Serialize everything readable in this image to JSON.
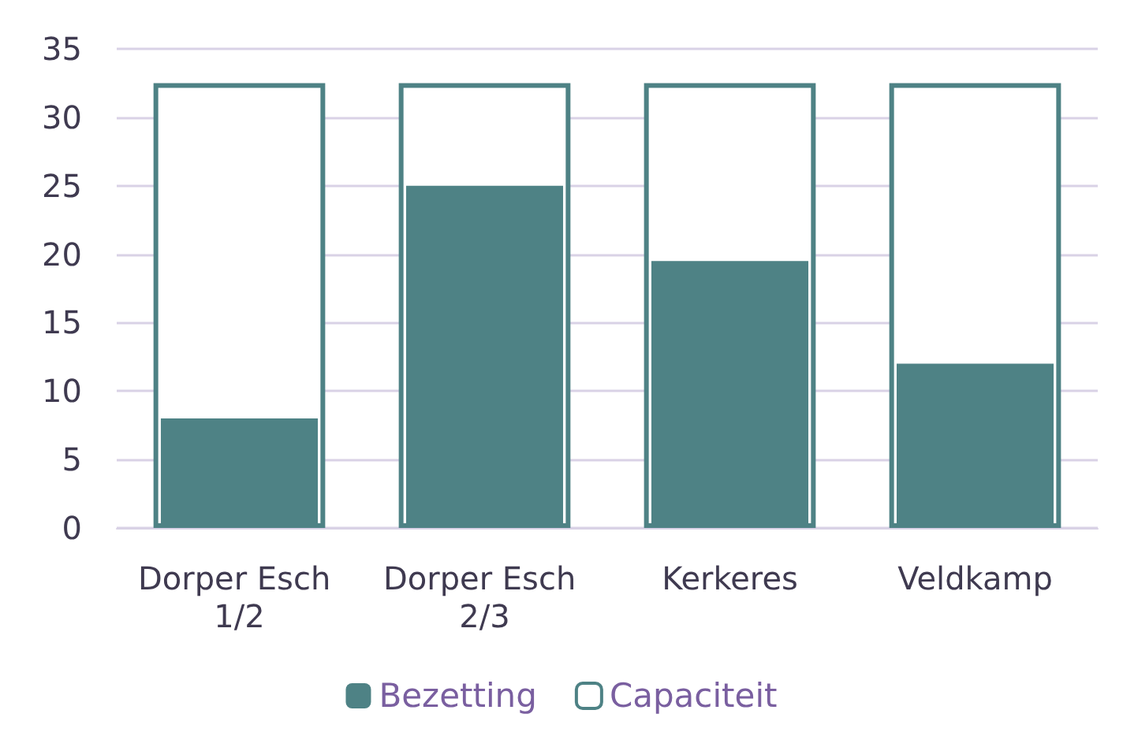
{
  "chart_data": {
    "type": "bar",
    "categories": [
      "Dorper Esch 1/2",
      "Dorper Esch 2/3",
      "Kerkeres",
      "Veldkamp"
    ],
    "series": [
      {
        "name": "Bezetting",
        "color": "#4e8285",
        "values": [
          8,
          25,
          19.5,
          12
        ]
      },
      {
        "name": "Capaciteit",
        "color": "#ffffff",
        "values": [
          32.5,
          32.5,
          32.5,
          32.5
        ]
      }
    ],
    "ylim": [
      0,
      35
    ],
    "yticks": [
      0,
      5,
      10,
      15,
      20,
      25,
      30,
      35
    ],
    "grid": "y",
    "legend": "bottom"
  }
}
